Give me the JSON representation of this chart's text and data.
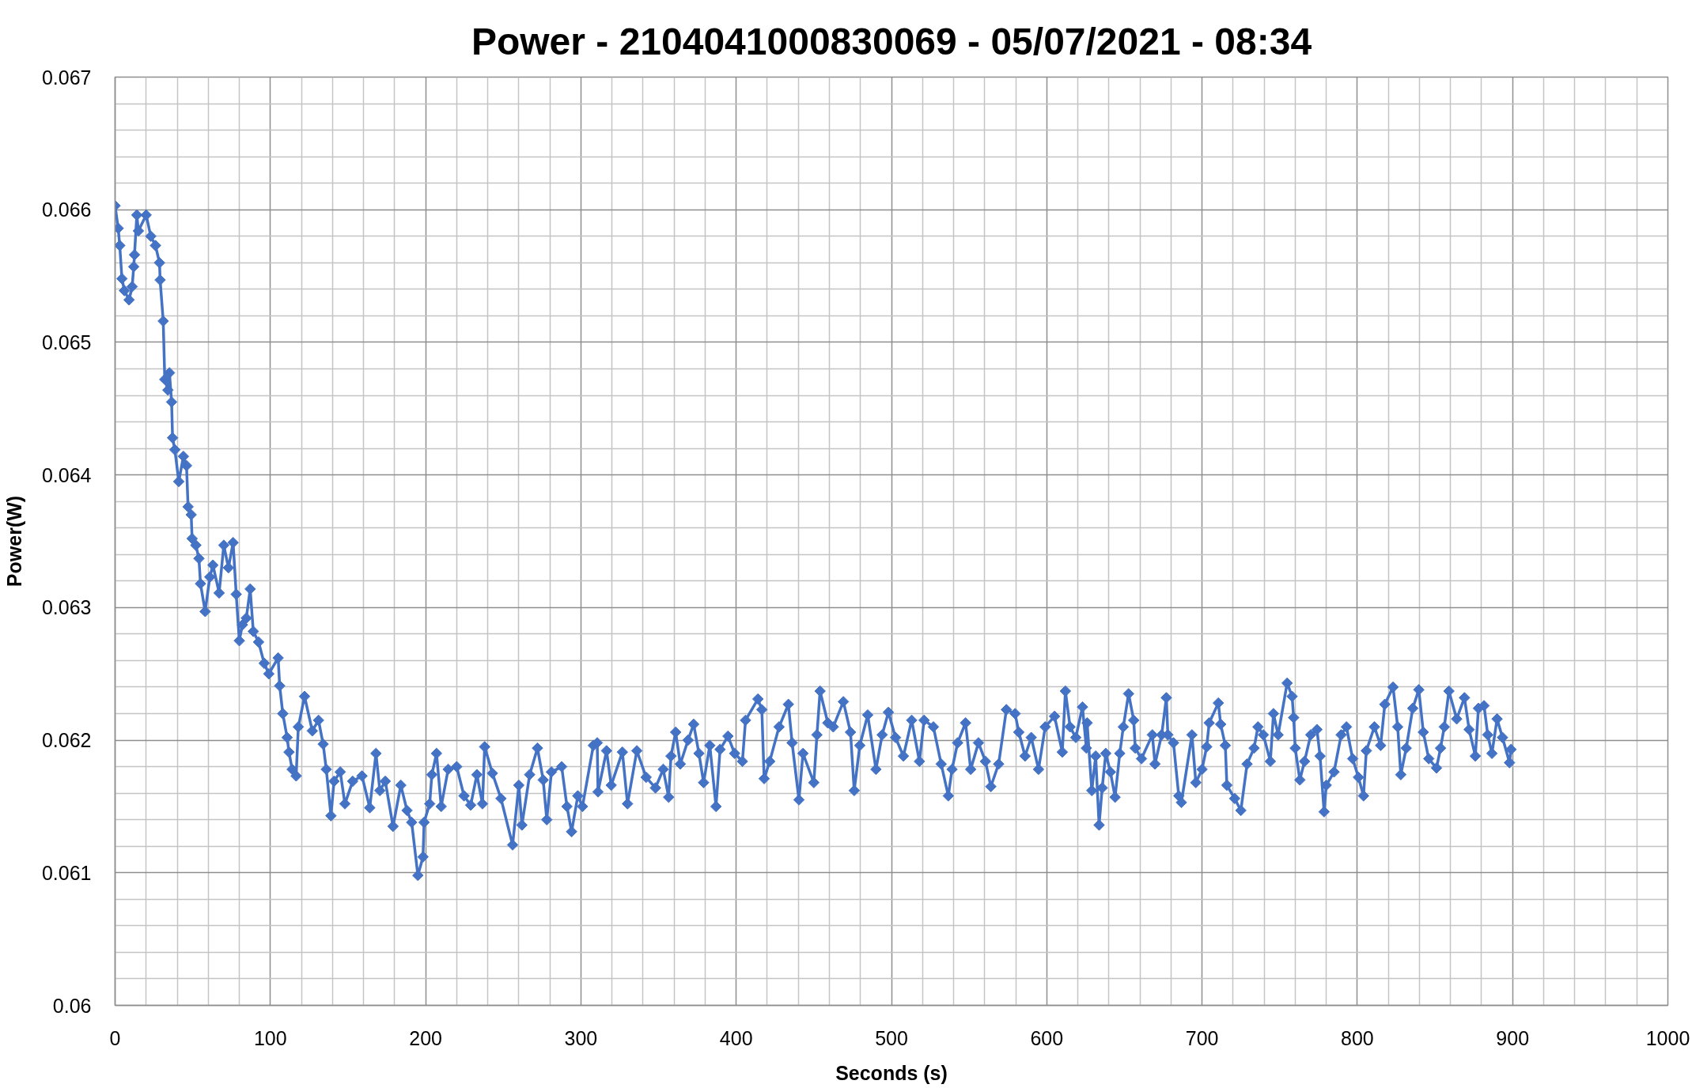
{
  "chart_data": {
    "type": "line",
    "title": "Power - 2104041000830069 - 05/07/2021 - 08:34",
    "xlabel": "Seconds (s)",
    "ylabel": "Power(W)",
    "x": [
      0,
      2,
      3,
      4.4,
      6,
      9,
      11,
      12,
      12.5,
      14,
      15,
      20,
      23,
      26,
      28.6,
      29,
      31,
      32,
      34,
      35,
      36.4,
      37,
      38.5,
      41,
      44,
      46,
      47,
      49,
      49.6,
      52,
      54,
      55,
      58,
      61,
      63,
      67,
      70,
      73,
      76,
      78,
      80,
      82,
      84.5,
      87,
      89,
      92.4,
      96,
      99,
      105,
      106,
      108,
      110.8,
      112,
      114,
      116.6,
      118,
      122,
      127,
      131,
      134,
      136,
      139,
      141,
      145,
      148,
      153,
      159,
      164,
      168,
      170.5,
      174,
      179,
      184,
      188,
      191,
      195,
      198.3,
      199,
      202.6,
      204,
      207,
      210,
      214.5,
      220,
      224.7,
      229,
      233,
      236.6,
      238,
      243,
      248.5,
      256,
      260,
      262,
      267,
      272,
      275.7,
      278,
      281,
      287.6,
      291,
      294,
      298,
      301,
      308,
      310.5,
      311,
      316.5,
      319.5,
      326.7,
      330,
      336,
      342,
      348,
      353,
      356.5,
      358,
      361,
      364,
      369,
      372.6,
      376,
      379,
      383,
      387,
      389.6,
      394.7,
      399,
      404,
      406,
      414,
      416.5,
      418,
      421.6,
      427.6,
      433.6,
      436,
      440.4,
      443,
      450,
      452,
      454,
      459,
      462.5,
      469,
      473.6,
      476,
      479.6,
      484.7,
      490,
      494,
      498,
      502.6,
      507.7,
      513,
      518,
      521,
      527,
      532,
      536.6,
      539,
      542.6,
      547.7,
      551,
      556,
      560.5,
      564,
      569,
      574,
      579.6,
      582,
      586,
      590,
      594.7,
      599,
      605,
      610,
      612,
      615,
      618.7,
      623,
      625.5,
      626,
      629,
      631.5,
      633.7,
      635.7,
      638,
      641,
      644,
      647,
      649.3,
      652.7,
      656,
      657,
      661,
      668,
      669.7,
      674,
      677,
      678,
      681.6,
      685,
      686.7,
      693.5,
      696,
      700,
      703,
      704.6,
      710.5,
      712,
      715,
      716,
      721,
      725,
      729,
      733.5,
      736,
      739.5,
      744,
      746,
      749,
      754.8,
      758,
      759,
      760,
      763,
      766,
      770,
      774,
      776,
      778.6,
      780,
      785,
      789.6,
      793,
      797,
      800.7,
      804,
      805.8,
      811,
      815,
      817.7,
      823,
      826,
      828,
      831.5,
      835.7,
      839.6,
      842.5,
      846,
      851,
      853.6,
      856,
      859,
      864,
      869,
      872,
      876,
      878,
      881.6,
      884,
      886.7,
      890,
      893.5,
      898,
      899
    ],
    "series": [
      {
        "color": "#4472c4",
        "values": [
          0.06603,
          0.06586,
          0.06573,
          0.06548,
          0.06539,
          0.06532,
          0.06542,
          0.06557,
          0.06566,
          0.06596,
          0.06584,
          0.06596,
          0.0658,
          0.06573,
          0.0656,
          0.06547,
          0.06516,
          0.06472,
          0.06464,
          0.06477,
          0.06455,
          0.06428,
          0.06419,
          0.06395,
          0.06414,
          0.06407,
          0.06376,
          0.0637,
          0.06352,
          0.06347,
          0.06337,
          0.06318,
          0.06297,
          0.06323,
          0.06332,
          0.06311,
          0.06347,
          0.0633,
          0.06349,
          0.0631,
          0.06275,
          0.06287,
          0.06292,
          0.06314,
          0.06282,
          0.06274,
          0.06258,
          0.0625,
          0.06262,
          0.06241,
          0.0622,
          0.06202,
          0.06191,
          0.06178,
          0.06173,
          0.0621,
          0.06233,
          0.06207,
          0.06215,
          0.06197,
          0.06178,
          0.06143,
          0.06169,
          0.06176,
          0.06152,
          0.06169,
          0.06173,
          0.06149,
          0.0619,
          0.06162,
          0.06169,
          0.06135,
          0.06166,
          0.06147,
          0.06138,
          0.06098,
          0.06112,
          0.06138,
          0.06152,
          0.06174,
          0.0619,
          0.0615,
          0.06178,
          0.0618,
          0.06158,
          0.06151,
          0.06174,
          0.06152,
          0.06195,
          0.06175,
          0.06156,
          0.06121,
          0.06166,
          0.06136,
          0.06174,
          0.06194,
          0.0617,
          0.0614,
          0.06176,
          0.0618,
          0.0615,
          0.06131,
          0.06158,
          0.0615,
          0.06196,
          0.06198,
          0.06161,
          0.06192,
          0.06166,
          0.06191,
          0.06152,
          0.06192,
          0.06172,
          0.06164,
          0.06178,
          0.06157,
          0.06188,
          0.06206,
          0.06182,
          0.062,
          0.06212,
          0.0619,
          0.06168,
          0.06196,
          0.0615,
          0.06193,
          0.06203,
          0.0619,
          0.06184,
          0.06215,
          0.06231,
          0.06223,
          0.06171,
          0.06184,
          0.0621,
          0.06227,
          0.06198,
          0.06155,
          0.0619,
          0.06168,
          0.06204,
          0.06237,
          0.06213,
          0.0621,
          0.06229,
          0.06206,
          0.06162,
          0.06196,
          0.06219,
          0.06178,
          0.06204,
          0.06221,
          0.06202,
          0.06188,
          0.06215,
          0.06184,
          0.06215,
          0.0621,
          0.06182,
          0.06158,
          0.06178,
          0.06198,
          0.06213,
          0.06178,
          0.06198,
          0.06184,
          0.06165,
          0.06182,
          0.06223,
          0.0622,
          0.06206,
          0.06188,
          0.06202,
          0.06178,
          0.0621,
          0.06218,
          0.06191,
          0.06237,
          0.0621,
          0.06202,
          0.06225,
          0.06194,
          0.06213,
          0.06162,
          0.06188,
          0.06136,
          0.06164,
          0.0619,
          0.06176,
          0.06157,
          0.0619,
          0.0621,
          0.06235,
          0.06215,
          0.06194,
          0.06186,
          0.06204,
          0.06182,
          0.06204,
          0.06232,
          0.06204,
          0.06198,
          0.06158,
          0.06153,
          0.06204,
          0.06168,
          0.06178,
          0.06195,
          0.06213,
          0.06228,
          0.06212,
          0.06196,
          0.06166,
          0.06156,
          0.06147,
          0.06182,
          0.06194,
          0.0621,
          0.06204,
          0.06184,
          0.0622,
          0.06204,
          0.06243,
          0.06233,
          0.06217,
          0.06194,
          0.0617,
          0.06184,
          0.06204,
          0.06208,
          0.06188,
          0.06146,
          0.06166,
          0.06176,
          0.06204,
          0.0621,
          0.06186,
          0.06172,
          0.06158,
          0.06192,
          0.0621,
          0.06196,
          0.06227,
          0.0624,
          0.0621,
          0.06174,
          0.06194,
          0.06224,
          0.06238,
          0.06206,
          0.06186,
          0.06179,
          0.06194,
          0.0621,
          0.06237,
          0.06216,
          0.06232,
          0.06208,
          0.06188,
          0.06224,
          0.06226,
          0.06204,
          0.0619,
          0.06216,
          0.06202,
          0.06183,
          0.06193
        ]
      }
    ],
    "xlim": [
      0,
      1000
    ],
    "ylim": [
      0.06,
      0.067
    ],
    "xticks": [
      0,
      {
        "value": 20,
        "label": null
      },
      {
        "value": 40,
        "label": null
      },
      {
        "value": 60,
        "label": null
      },
      {
        "value": 80,
        "label": null
      },
      100,
      {
        "value": 120,
        "label": null
      },
      {
        "value": 140,
        "label": null
      },
      {
        "value": 160,
        "label": null
      },
      {
        "value": 180,
        "label": null
      },
      200,
      {
        "value": 220,
        "label": null
      },
      {
        "value": 240,
        "label": null
      },
      {
        "value": 260,
        "label": null
      },
      {
        "value": 280,
        "label": null
      },
      300,
      {
        "value": 320,
        "label": null
      },
      {
        "value": 340,
        "label": null
      },
      {
        "value": 360,
        "label": null
      },
      {
        "value": 380,
        "label": null
      },
      400,
      {
        "value": 420,
        "label": null
      },
      {
        "value": 440,
        "label": null
      },
      {
        "value": 460,
        "label": null
      },
      {
        "value": 480,
        "label": null
      },
      500,
      {
        "value": 520,
        "label": null
      },
      {
        "value": 540,
        "label": null
      },
      {
        "value": 560,
        "label": null
      },
      {
        "value": 580,
        "label": null
      },
      600,
      {
        "value": 620,
        "label": null
      },
      {
        "value": 640,
        "label": null
      },
      {
        "value": 660,
        "label": null
      },
      {
        "value": 680,
        "label": null
      },
      700,
      {
        "value": 720,
        "label": null
      },
      {
        "value": 740,
        "label": null
      },
      {
        "value": 760,
        "label": null
      },
      {
        "value": 780,
        "label": null
      },
      800,
      {
        "value": 820,
        "label": null
      },
      {
        "value": 840,
        "label": null
      },
      {
        "value": 860,
        "label": null
      },
      {
        "value": 880,
        "label": null
      },
      900,
      {
        "value": 920,
        "label": null
      },
      {
        "value": 940,
        "label": null
      },
      {
        "value": 960,
        "label": null
      },
      {
        "value": 980,
        "label": null
      },
      1000
    ],
    "yticks": [
      0.06,
      {
        "value": 0.0602,
        "label": null
      },
      {
        "value": 0.0604,
        "label": null
      },
      {
        "value": 0.0606,
        "label": null
      },
      {
        "value": 0.0608,
        "label": null
      },
      0.061,
      {
        "value": 0.0612,
        "label": null
      },
      {
        "value": 0.0614,
        "label": null
      },
      {
        "value": 0.0616,
        "label": null
      },
      {
        "value": 0.0618,
        "label": null
      },
      0.062,
      {
        "value": 0.0622,
        "label": null
      },
      {
        "value": 0.0624,
        "label": null
      },
      {
        "value": 0.0626,
        "label": null
      },
      {
        "value": 0.0628,
        "label": null
      },
      0.063,
      {
        "value": 0.0632,
        "label": null
      },
      {
        "value": 0.0634,
        "label": null
      },
      {
        "value": 0.0636,
        "label": null
      },
      {
        "value": 0.0638,
        "label": null
      },
      0.064,
      {
        "value": 0.0642,
        "label": null
      },
      {
        "value": 0.0644,
        "label": null
      },
      {
        "value": 0.0646,
        "label": null
      },
      {
        "value": 0.0648,
        "label": null
      },
      0.065,
      {
        "value": 0.0652,
        "label": null
      },
      {
        "value": 0.0654,
        "label": null
      },
      {
        "value": 0.0656,
        "label": null
      },
      {
        "value": 0.0658,
        "label": null
      },
      0.066,
      {
        "value": 0.0662,
        "label": null
      },
      {
        "value": 0.0664,
        "label": null
      },
      {
        "value": 0.0666,
        "label": null
      },
      {
        "value": 0.0668,
        "label": null
      },
      0.067
    ],
    "grid": true,
    "marker": "diamond",
    "line_style": "solid"
  }
}
